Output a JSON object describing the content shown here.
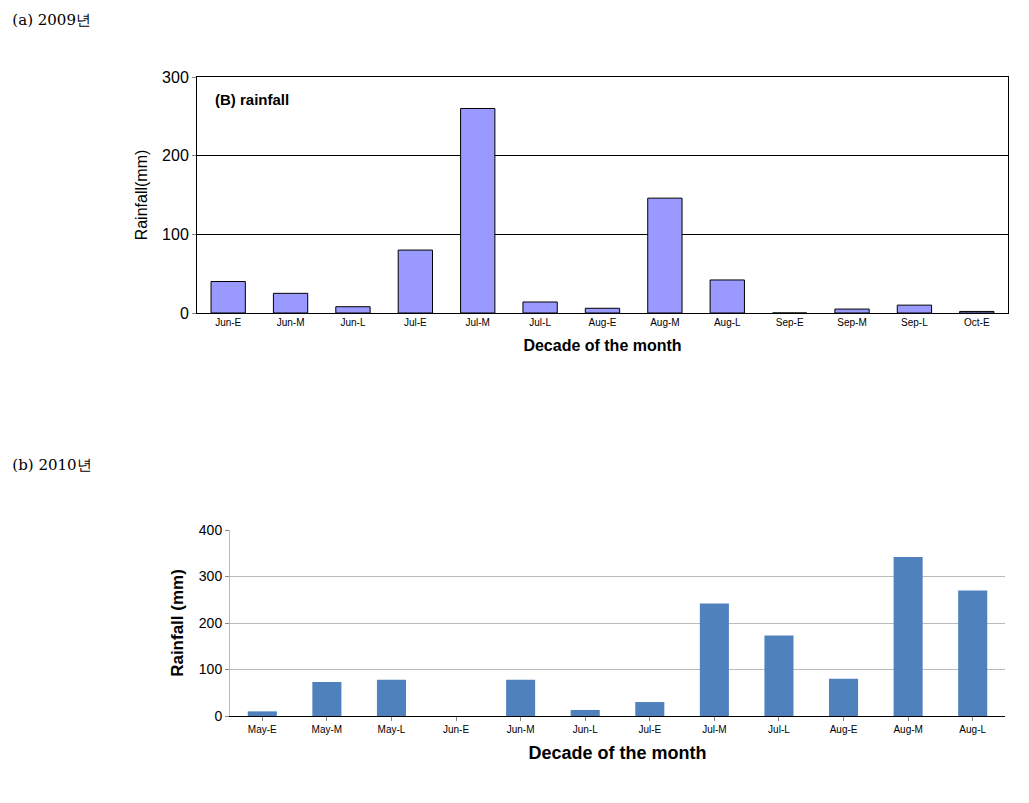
{
  "chart_data": [
    {
      "type": "bar",
      "title": "(a) 2009년",
      "annotations": [
        "(B) rainfall"
      ],
      "x_label": "Decade of the month",
      "y_label": "Rainfall(mm)",
      "categories": [
        "Jun-E",
        "Jun-M",
        "Jun-L",
        "Jul-E",
        "Jul-M",
        "Jul-L",
        "Aug-E",
        "Aug-M",
        "Aug-L",
        "Sep-E",
        "Sep-M",
        "Sep-L",
        "Oct-E"
      ],
      "values": [
        40,
        25,
        8,
        80,
        260,
        14,
        6,
        146,
        42,
        0,
        5,
        10,
        2
      ],
      "color": "#9999ff",
      "ylim": [
        0,
        300
      ],
      "yticks": [
        0,
        100,
        200,
        300
      ],
      "grid": true
    },
    {
      "type": "bar",
      "title": "(b) 2010년",
      "x_label": "Decade of the month",
      "y_label": "Rainfall (mm)",
      "categories": [
        "May-E",
        "May-M",
        "May-L",
        "Jun-E",
        "Jun-M",
        "Jun-L",
        "Jul-E",
        "Jul-M",
        "Jul-L",
        "Aug-E",
        "Aug-M",
        "Aug-L"
      ],
      "values": [
        10,
        73,
        78,
        0,
        78,
        13,
        30,
        242,
        173,
        80,
        342,
        270
      ],
      "color": "#4f81bd",
      "ylim": [
        0,
        400
      ],
      "yticks": [
        0,
        100,
        200,
        300,
        400
      ],
      "grid": true
    }
  ]
}
